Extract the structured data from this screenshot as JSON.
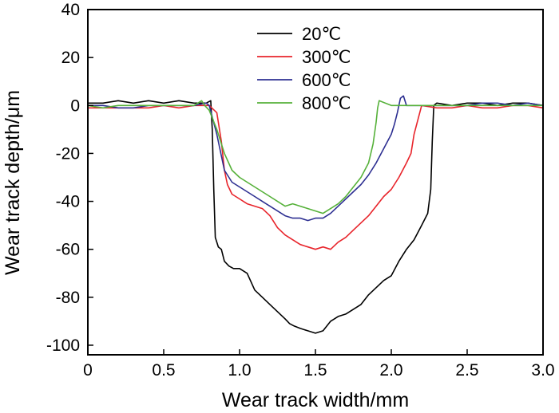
{
  "chart_data": {
    "type": "line",
    "xlabel": "Wear track width/mm",
    "ylabel": "Wear track depth/μm",
    "xlim": [
      0,
      3.0
    ],
    "ylim": [
      -104,
      40
    ],
    "x_ticks": [
      0,
      0.5,
      1.0,
      1.5,
      2.0,
      2.5,
      3.0
    ],
    "x_tick_labels": [
      "0",
      "0.5",
      "1.0",
      "1.5",
      "2.0",
      "2.5",
      "3.0"
    ],
    "y_ticks": [
      40,
      20,
      0,
      -20,
      -40,
      -60,
      -80,
      -100
    ],
    "y_tick_labels": [
      "40",
      "20",
      "0",
      "-20",
      "-40",
      "-60",
      "-80",
      "-100"
    ],
    "legend_position": "top-center",
    "series": [
      {
        "name": "20℃",
        "color": "#000000",
        "x": [
          0.0,
          0.1,
          0.2,
          0.3,
          0.4,
          0.5,
          0.6,
          0.7,
          0.78,
          0.81,
          0.82,
          0.83,
          0.84,
          0.86,
          0.88,
          0.9,
          0.93,
          0.96,
          1.0,
          1.05,
          1.1,
          1.15,
          1.2,
          1.25,
          1.3,
          1.33,
          1.36,
          1.4,
          1.45,
          1.5,
          1.55,
          1.6,
          1.65,
          1.7,
          1.75,
          1.8,
          1.85,
          1.9,
          1.95,
          2.0,
          2.05,
          2.1,
          2.15,
          2.2,
          2.24,
          2.26,
          2.27,
          2.28,
          2.3,
          2.4,
          2.5,
          2.6,
          2.7,
          2.8,
          2.9,
          3.0
        ],
        "y": [
          1,
          1,
          2,
          1,
          2,
          1,
          2,
          1,
          1,
          2,
          -10,
          -35,
          -55,
          -59,
          -60,
          -65,
          -67,
          -68,
          -68,
          -70,
          -77,
          -80,
          -83,
          -86,
          -89,
          -91,
          -92,
          -93,
          -94,
          -95,
          -94,
          -90,
          -88,
          -87,
          -85,
          -83,
          -79,
          -76,
          -73,
          -71,
          -65,
          -60,
          -56,
          -50,
          -45,
          -35,
          -15,
          0,
          1,
          0,
          1,
          1,
          0,
          1,
          1,
          0
        ],
        "visible_text": [
          "20℃"
        ]
      },
      {
        "name": "300℃",
        "color": "#e8242b",
        "x": [
          0.0,
          0.1,
          0.2,
          0.3,
          0.4,
          0.5,
          0.6,
          0.7,
          0.75,
          0.8,
          0.85,
          0.88,
          0.9,
          0.92,
          0.95,
          1.0,
          1.05,
          1.1,
          1.15,
          1.2,
          1.25,
          1.3,
          1.35,
          1.4,
          1.45,
          1.5,
          1.55,
          1.6,
          1.65,
          1.7,
          1.75,
          1.8,
          1.85,
          1.9,
          1.95,
          2.0,
          2.05,
          2.1,
          2.13,
          2.15,
          2.2,
          2.3,
          2.4,
          2.5,
          2.6,
          2.7,
          2.8,
          2.9,
          3.0
        ],
        "y": [
          -1,
          -1,
          -1,
          -1,
          -1,
          0,
          -1,
          0,
          0,
          0,
          -3,
          -15,
          -27,
          -33,
          -37,
          -39,
          -41,
          -42,
          -43,
          -46,
          -51,
          -54,
          -56,
          -58,
          -59,
          -60,
          -59,
          -60,
          -57,
          -55,
          -52,
          -49,
          -46,
          -42,
          -38,
          -35,
          -30,
          -24,
          -20,
          -12,
          0,
          -1,
          -1,
          0,
          -1,
          -1,
          0,
          0,
          -1
        ],
        "visible_text": [
          "300℃"
        ]
      },
      {
        "name": "600℃",
        "color": "#2e3092",
        "x": [
          0.0,
          0.1,
          0.2,
          0.3,
          0.4,
          0.5,
          0.6,
          0.7,
          0.78,
          0.8,
          0.85,
          0.9,
          0.95,
          1.0,
          1.05,
          1.1,
          1.15,
          1.2,
          1.25,
          1.3,
          1.35,
          1.4,
          1.45,
          1.5,
          1.55,
          1.6,
          1.65,
          1.7,
          1.75,
          1.8,
          1.85,
          1.9,
          1.95,
          2.0,
          2.02,
          2.04,
          2.06,
          2.08,
          2.1,
          2.2,
          2.3,
          2.4,
          2.5,
          2.6,
          2.7,
          2.8,
          2.9,
          3.0
        ],
        "y": [
          0,
          0,
          -1,
          -1,
          0,
          0,
          0,
          0,
          1,
          0,
          -12,
          -27,
          -32,
          -34,
          -36,
          -38,
          -40,
          -42,
          -44,
          -46,
          -47,
          -47,
          -48,
          -47,
          -47,
          -45,
          -42,
          -39,
          -36,
          -33,
          -29,
          -24,
          -18,
          -12,
          -8,
          -3,
          3,
          4,
          0,
          0,
          0,
          0,
          0,
          1,
          1,
          0,
          1,
          0
        ],
        "visible_text": [
          "600℃"
        ]
      },
      {
        "name": "800℃",
        "color": "#56b13a",
        "x": [
          0.0,
          0.1,
          0.2,
          0.3,
          0.4,
          0.5,
          0.6,
          0.7,
          0.75,
          0.77,
          0.8,
          0.85,
          0.9,
          0.95,
          1.0,
          1.05,
          1.1,
          1.15,
          1.2,
          1.25,
          1.3,
          1.35,
          1.4,
          1.45,
          1.5,
          1.55,
          1.6,
          1.65,
          1.7,
          1.75,
          1.8,
          1.85,
          1.88,
          1.9,
          1.91,
          1.92,
          2.0,
          2.1,
          2.2,
          2.3,
          2.4,
          2.5,
          2.6,
          2.7,
          2.8,
          2.9,
          3.0
        ],
        "y": [
          0,
          -1,
          0,
          0,
          0,
          0,
          0,
          0,
          2,
          0,
          -2,
          -10,
          -20,
          -27,
          -30,
          -32,
          -34,
          -36,
          -38,
          -40,
          -42,
          -41,
          -42,
          -43,
          -44,
          -45,
          -43,
          -41,
          -38,
          -34,
          -30,
          -24,
          -16,
          -7,
          -1,
          2,
          0,
          0,
          0,
          0,
          0,
          0,
          0,
          0,
          0,
          0,
          0
        ],
        "visible_text": [
          "800℃"
        ]
      }
    ]
  }
}
